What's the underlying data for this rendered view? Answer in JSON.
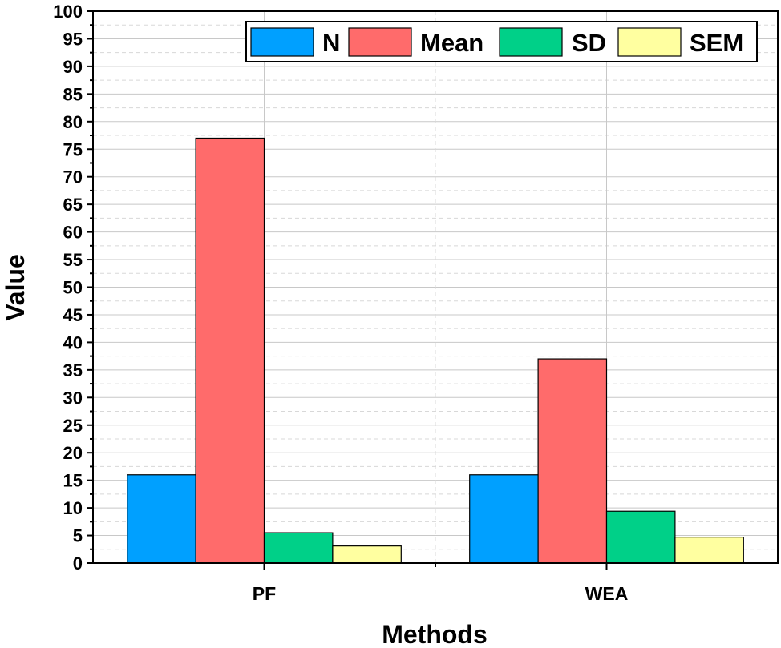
{
  "chart_data": {
    "type": "bar",
    "categories": [
      "PF",
      "WEA"
    ],
    "series": [
      {
        "name": "N",
        "values": [
          16,
          16
        ],
        "color": "#00A0FF"
      },
      {
        "name": "Mean",
        "values": [
          77,
          37
        ],
        "color": "#FF6B6B"
      },
      {
        "name": "SD",
        "values": [
          5.5,
          9.4
        ],
        "color": "#00D088"
      },
      {
        "name": "SEM",
        "values": [
          3.1,
          4.7
        ],
        "color": "#FFFFA0"
      }
    ],
    "xlabel": "Methods",
    "ylabel": "Value",
    "ylim": [
      0,
      100
    ],
    "yticks": [
      0,
      5,
      10,
      15,
      20,
      25,
      30,
      35,
      40,
      45,
      50,
      55,
      60,
      65,
      70,
      75,
      80,
      85,
      90,
      95,
      100
    ],
    "grid": true,
    "legend_position": "top-right"
  }
}
